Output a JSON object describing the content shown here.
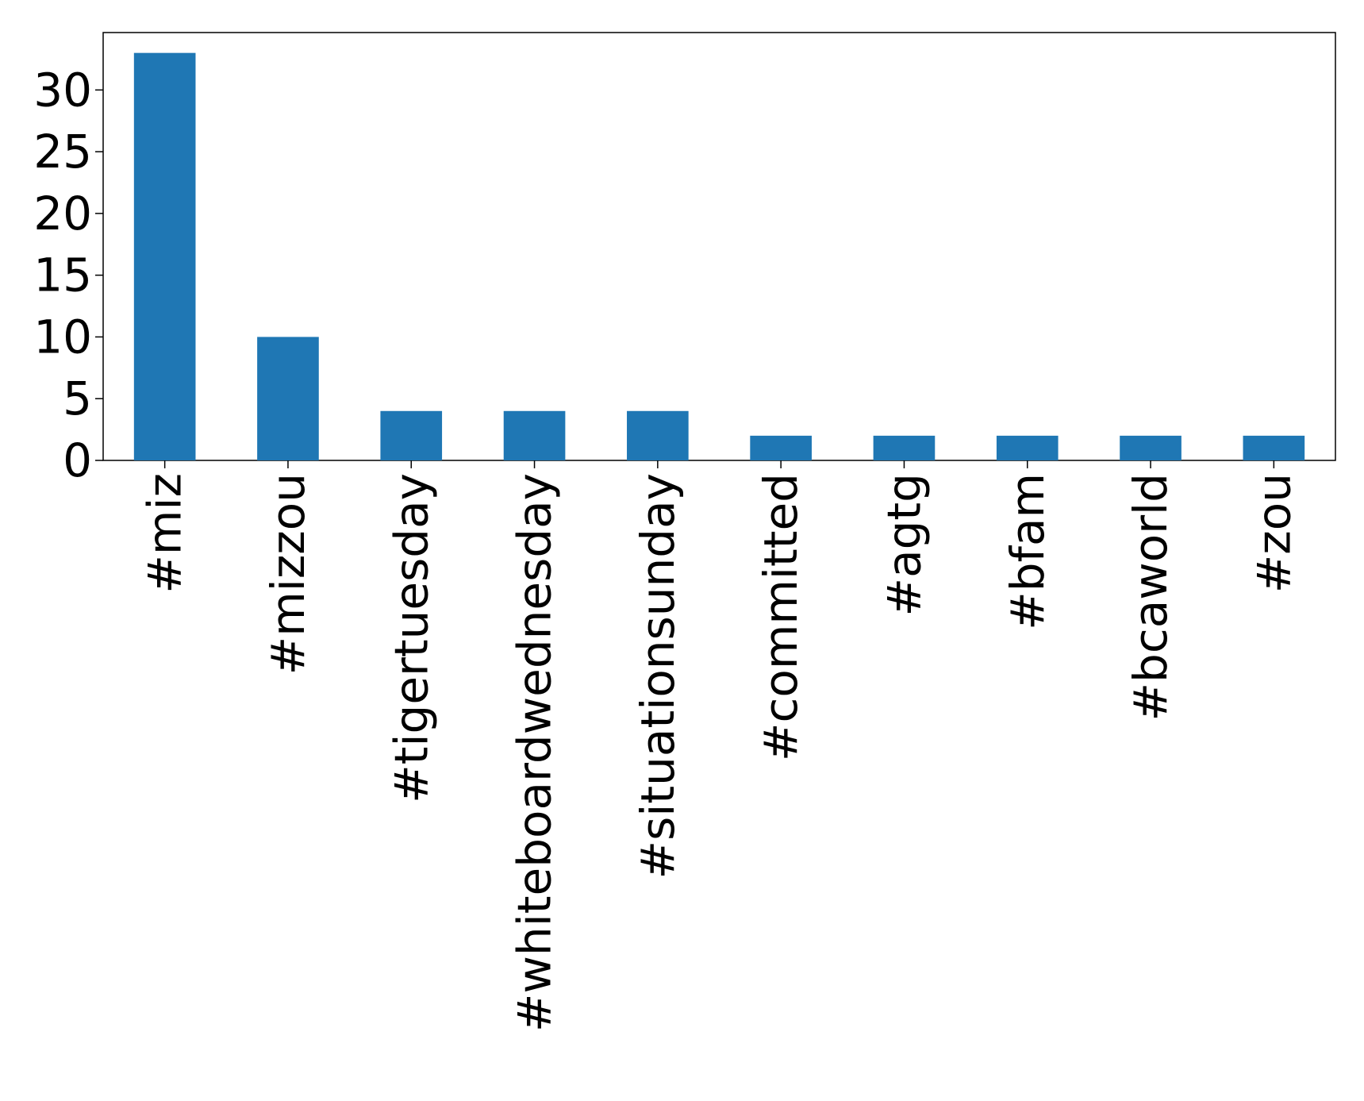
{
  "chart_data": {
    "type": "bar",
    "title": "",
    "xlabel": "",
    "ylabel": "",
    "categories": [
      "#miz",
      "#mizzou",
      "#tigertuesday",
      "#whiteboardwednesday",
      "#situationsunday",
      "#committed",
      "#agtg",
      "#bfam",
      "#bcaworld",
      "#zou"
    ],
    "values": [
      33,
      10,
      4,
      4,
      4,
      2,
      2,
      2,
      2,
      2
    ],
    "ylim": [
      0,
      34.65
    ],
    "yticks": [
      0,
      5,
      10,
      15,
      20,
      25,
      30
    ],
    "grid": false,
    "legend": "none",
    "bar_color": "#1f77b4"
  }
}
